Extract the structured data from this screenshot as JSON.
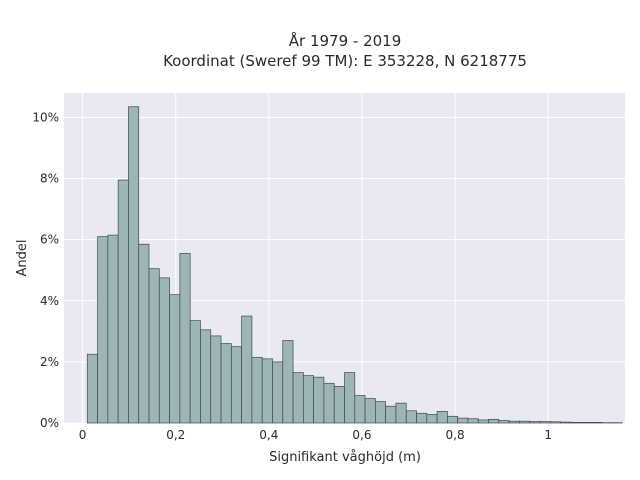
{
  "chart_data": {
    "type": "bar",
    "title_line1": "År 1979 - 2019",
    "title_line2": "Koordinat (Sweref 99 TM): E 353228, N 6218775",
    "xlabel": "Signifikant våghöjd (m)",
    "ylabel": "Andel",
    "bin_start": 0.01,
    "bin_width": 0.0221,
    "values": [
      2.25,
      6.1,
      6.15,
      7.95,
      10.35,
      5.85,
      5.05,
      4.75,
      4.2,
      5.55,
      3.35,
      3.05,
      2.85,
      2.6,
      2.5,
      3.5,
      2.15,
      2.1,
      2.0,
      2.7,
      1.65,
      1.55,
      1.5,
      1.3,
      1.2,
      1.65,
      0.9,
      0.8,
      0.7,
      0.55,
      0.65,
      0.4,
      0.32,
      0.28,
      0.38,
      0.22,
      0.16,
      0.14,
      0.1,
      0.12,
      0.08,
      0.06,
      0.06,
      0.05,
      0.05,
      0.04,
      0.03,
      0.02,
      0.02,
      0.02,
      0.01,
      0.01
    ],
    "xlim": [
      -0.04,
      1.165
    ],
    "ylim": [
      0,
      10.8
    ],
    "xticks": [
      0,
      0.2,
      0.4,
      0.6,
      0.8,
      1
    ],
    "xtick_labels": [
      "0",
      "0,2",
      "0,4",
      "0,6",
      "0,8",
      "1"
    ],
    "yticks": [
      0,
      2,
      4,
      6,
      8,
      10
    ],
    "ytick_labels": [
      "0%",
      "2%",
      "4%",
      "6%",
      "8%",
      "10%"
    ],
    "grid": true,
    "colors": {
      "plot_bg": "#e9e9f1",
      "grid": "#ffffff",
      "bar_fill": "#9db5b4",
      "bar_stroke": "#3d4a4a"
    }
  }
}
